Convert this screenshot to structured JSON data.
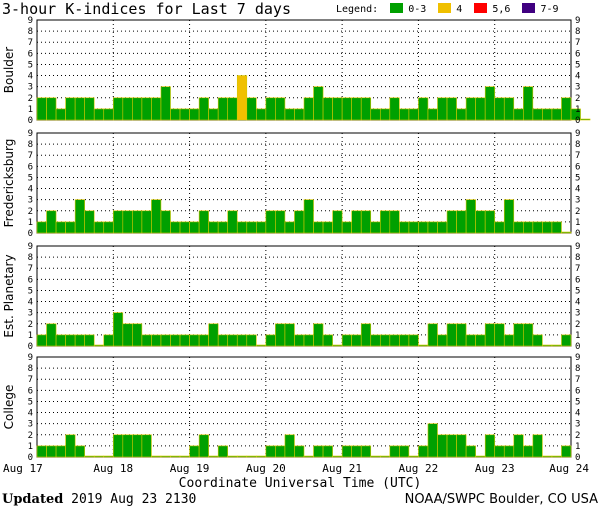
{
  "title": "3-hour K-indices for Last 7 days",
  "legend": {
    "label": "Legend:",
    "items": [
      {
        "label": "0-3",
        "color": "#00a000"
      },
      {
        "label": "4",
        "color": "#f0c000"
      },
      {
        "label": "5,6",
        "color": "#ff0000"
      },
      {
        "label": "7-9",
        "color": "#400080"
      }
    ]
  },
  "xlabel": "Coordinate Universal Time (UTC)",
  "updated": {
    "label": "Updated",
    "value": "2019 Aug 23 2130"
  },
  "credit": "NOAA/SWPC Boulder, CO USA",
  "chart_data": {
    "type": "bar",
    "x_tick_labels": [
      "Aug 17",
      "Aug 18",
      "Aug 19",
      "Aug 20",
      "Aug 21",
      "Aug 22",
      "Aug 23",
      "Aug 24"
    ],
    "ylim": [
      0,
      9
    ],
    "y_ticks": [
      0,
      1,
      2,
      3,
      4,
      5,
      6,
      7,
      8,
      9
    ],
    "grid": true,
    "bins_per_day": 8,
    "series": [
      {
        "name": "Boulder",
        "values": [
          2,
          2,
          1,
          2,
          2,
          2,
          1,
          1,
          2,
          2,
          2,
          2,
          2,
          3,
          1,
          1,
          1,
          2,
          1,
          2,
          2,
          4,
          2,
          1,
          2,
          2,
          1,
          1,
          2,
          3,
          2,
          2,
          2,
          2,
          2,
          1,
          1,
          2,
          1,
          1,
          2,
          1,
          2,
          2,
          1,
          2,
          2,
          3,
          2,
          2,
          1,
          3,
          1,
          1,
          1,
          2,
          1,
          0
        ]
      },
      {
        "name": "Fredericksburg",
        "values": [
          1,
          2,
          1,
          1,
          3,
          2,
          1,
          1,
          2,
          2,
          2,
          2,
          3,
          2,
          1,
          1,
          1,
          2,
          1,
          1,
          2,
          1,
          1,
          1,
          2,
          2,
          1,
          2,
          3,
          1,
          1,
          2,
          1,
          2,
          2,
          1,
          2,
          2,
          1,
          1,
          1,
          1,
          1,
          2,
          2,
          3,
          2,
          2,
          1,
          3,
          1,
          1,
          1,
          1,
          1,
          0
        ]
      },
      {
        "name": "Est. Planetary",
        "values": [
          1,
          2,
          1,
          1,
          1,
          1,
          0,
          1,
          3,
          2,
          2,
          1,
          1,
          1,
          1,
          1,
          1,
          1,
          2,
          1,
          1,
          1,
          1,
          0,
          1,
          2,
          2,
          1,
          1,
          2,
          1,
          0,
          1,
          1,
          2,
          1,
          1,
          1,
          1,
          1,
          0,
          2,
          1,
          2,
          2,
          1,
          1,
          2,
          2,
          1,
          2,
          2,
          1,
          0,
          0,
          1
        ]
      },
      {
        "name": "College",
        "values": [
          1,
          1,
          1,
          2,
          1,
          0,
          0,
          0,
          2,
          2,
          2,
          2,
          0,
          0,
          0,
          0,
          1,
          2,
          0,
          1,
          0,
          0,
          0,
          0,
          1,
          1,
          2,
          1,
          0,
          1,
          1,
          0,
          1,
          1,
          1,
          0,
          0,
          1,
          1,
          0,
          1,
          3,
          2,
          2,
          2,
          1,
          0,
          2,
          1,
          1,
          2,
          1,
          2,
          0,
          0,
          1
        ]
      }
    ],
    "colors": {
      "low": "#00a000",
      "moderate": "#f0c000",
      "high": "#ff0000",
      "severe": "#400080",
      "outline": "#d8c800"
    }
  }
}
